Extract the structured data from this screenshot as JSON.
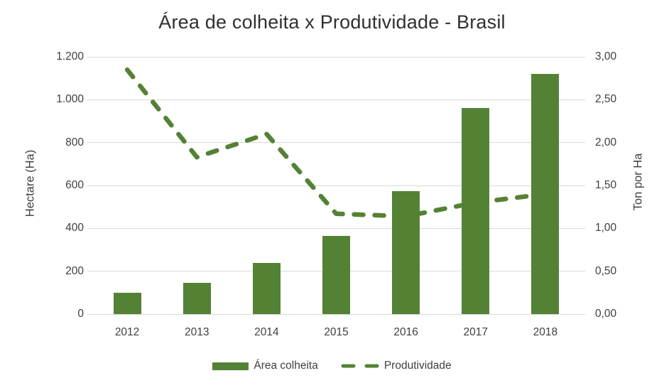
{
  "title": "Área de colheita x Produtividade - Brasil",
  "legend": {
    "area_label": "Área colheita",
    "prod_label": "Produtividade"
  },
  "colors": {
    "bar": "#548235",
    "line": "#548235",
    "gridline": "#d9d9d9",
    "axis_text": "#404040",
    "title_text": "#303030"
  },
  "chart_data": {
    "type": "bar",
    "subtype": "combo bar+dashed-line, dual axis",
    "title": "Área de colheita x Produtividade - Brasil",
    "categories": [
      "2012",
      "2013",
      "2014",
      "2015",
      "2016",
      "2017",
      "2018"
    ],
    "series": [
      {
        "name": "Área colheita",
        "type": "bar",
        "axis": "left",
        "values": [
          100,
          145,
          240,
          365,
          575,
          960,
          1120
        ]
      },
      {
        "name": "Produtividade",
        "type": "line",
        "style": "dashed",
        "axis": "right",
        "values": [
          2.85,
          1.83,
          2.1,
          1.17,
          1.14,
          1.3,
          1.4
        ]
      }
    ],
    "y_left": {
      "title": "Hectare (Ha)",
      "min": 0,
      "max": 1200,
      "ticks": [
        "1.200",
        "1.000",
        "800",
        "600",
        "400",
        "200",
        "0"
      ]
    },
    "y_right": {
      "title": "Ton por Ha",
      "min": 0,
      "max": 3,
      "ticks": [
        "3,00",
        "2,50",
        "2,00",
        "1,50",
        "1,00",
        "0,50",
        "0,00"
      ]
    },
    "grid": true,
    "legend_position": "bottom"
  }
}
